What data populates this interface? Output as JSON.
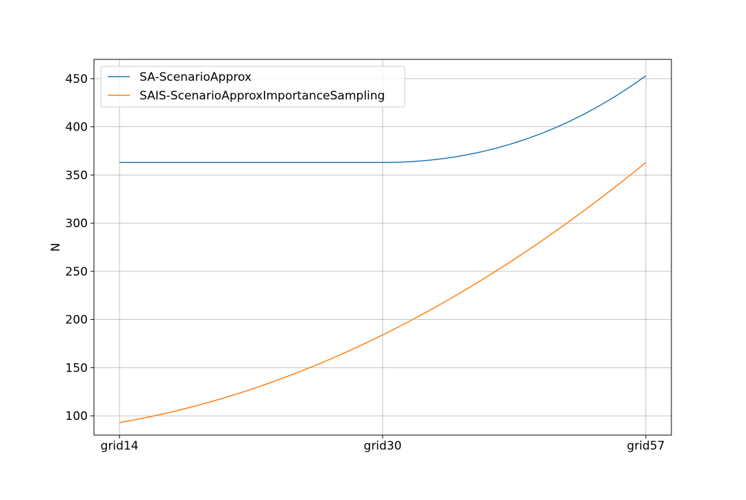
{
  "chart_data": {
    "type": "line",
    "title": "",
    "xlabel": "",
    "ylabel": "N",
    "categories": [
      "grid14",
      "grid30",
      "grid57"
    ],
    "ylim": [
      80,
      470
    ],
    "yticks": [
      100,
      150,
      200,
      250,
      300,
      350,
      400,
      450
    ],
    "grid": true,
    "legend_position": "upper-left",
    "series": [
      {
        "name": "SA-ScenarioApprox",
        "color": "#1f77b4",
        "values": [
          363,
          363,
          453
        ]
      },
      {
        "name": "SAIS-ScenarioApproxImportanceSampling",
        "color": "#ff7f0e",
        "values": [
          93,
          184,
          363
        ]
      }
    ]
  }
}
